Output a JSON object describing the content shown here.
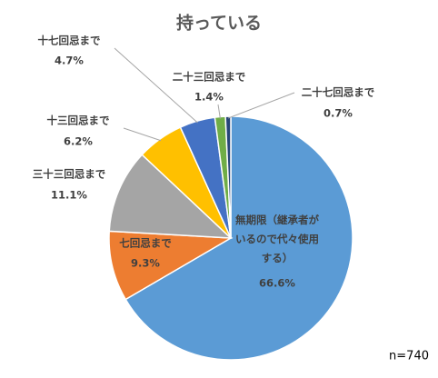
{
  "chart_data": {
    "type": "pie",
    "title": "持っている",
    "note": "n=740",
    "categories": [
      "無期限（継承者がいるので代々使用する）",
      "七回忌まで",
      "三十三回忌まで",
      "十三回忌まで",
      "十七回忌まで",
      "二十三回忌まで",
      "二十七回忌まで"
    ],
    "values": [
      66.6,
      9.3,
      11.1,
      6.2,
      4.7,
      1.4,
      0.7
    ],
    "value_labels": [
      "66.6%",
      "9.3%",
      "11.1%",
      "6.2%",
      "4.7%",
      "1.4%",
      "0.7%"
    ],
    "colors": [
      "#5b9bd5",
      "#ed7d31",
      "#a5a5a5",
      "#ffc000",
      "#4472c4",
      "#70ad47",
      "#264478"
    ]
  }
}
